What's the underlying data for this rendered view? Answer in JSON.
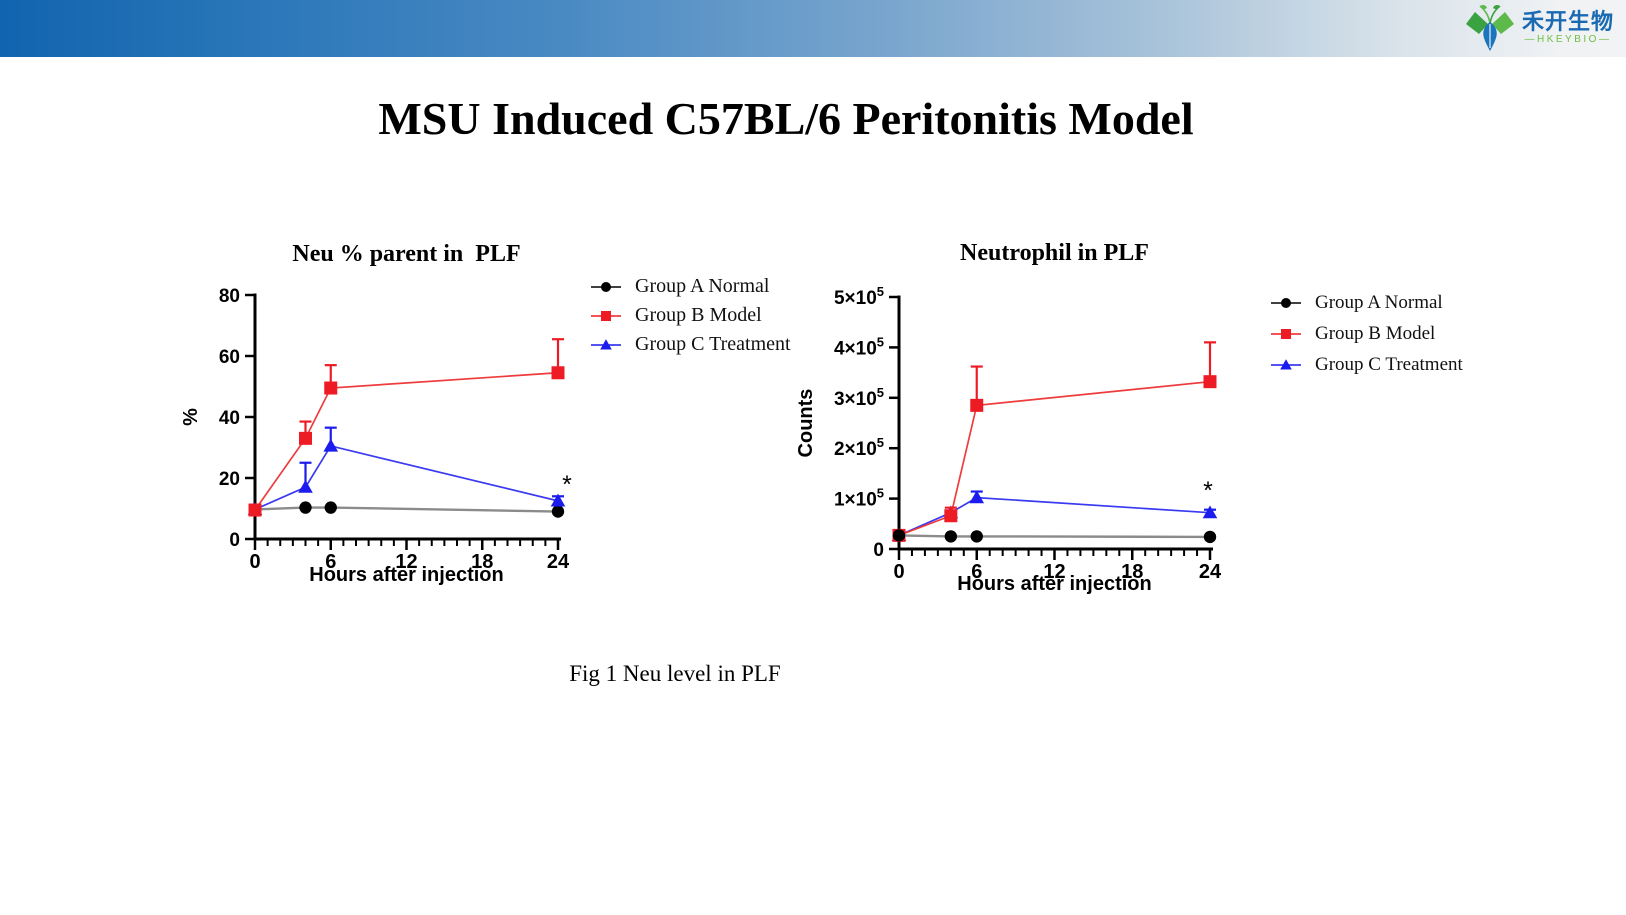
{
  "header": {
    "logo_text_cn": "禾开生物",
    "logo_text_en": "—HKEYBIO—",
    "gradient_left": "#1164af",
    "gradient_right": "#f2f3f4",
    "logo_blue": "#1a6ab3",
    "logo_green_dark": "#3aa241",
    "logo_green_light": "#5cb94a",
    "logo_drop_blue": "#1c75bc"
  },
  "title": "MSU Induced C57BL/6 Peritonitis Model",
  "caption": "Fig 1 Neu level in PLF",
  "chart_data": [
    {
      "type": "line",
      "title": "Neu % parent in  PLF",
      "xlabel": "Hours after injection",
      "ylabel": "%",
      "x": [
        0,
        4,
        6,
        24
      ],
      "xlim": [
        0,
        24
      ],
      "x_major_ticks": [
        0,
        6,
        12,
        18,
        24
      ],
      "x_minor_step": 1,
      "ylim": [
        0,
        80
      ],
      "y_ticks": [
        {
          "v": 0,
          "main": "0"
        },
        {
          "v": 20,
          "main": "20"
        },
        {
          "v": 40,
          "main": "40"
        },
        {
          "v": 60,
          "main": "60"
        },
        {
          "v": 80,
          "main": "80"
        }
      ],
      "grid": false,
      "legend_position": "right",
      "series": [
        {
          "name": "Group A Normal",
          "marker": "circle",
          "color": "#000000",
          "line_color": "#8b8b8b",
          "legend_line": "#000000",
          "line_width": 2.4,
          "values": [
            9.7,
            10.3,
            10.3,
            9.0
          ],
          "err_up": [
            0,
            0,
            0,
            0
          ]
        },
        {
          "name": "Group B Model",
          "marker": "square",
          "color": "#ed1c24",
          "line_color": "#ee3b3b",
          "legend_line": "#ed1c24",
          "line_width": 1.7,
          "values": [
            9.5,
            33,
            49.5,
            54.5
          ],
          "err_up": [
            0,
            5.5,
            7.5,
            11
          ]
        },
        {
          "name": "Group C Treatment",
          "marker": "triangle",
          "color": "#1c1cee",
          "line_color": "#3a3af0",
          "legend_line": "#1c1cee",
          "line_width": 1.7,
          "values": [
            9.7,
            17,
            30.5,
            12.5
          ],
          "err_up": [
            0,
            8,
            6,
            1.5
          ]
        }
      ],
      "draw_order": [
        0,
        2,
        1
      ],
      "annotation": {
        "text": "*",
        "x": 24,
        "y": 19.3,
        "dx": 9
      }
    },
    {
      "type": "line",
      "title": "Neutrophil in PLF",
      "xlabel": "Hours after injection",
      "ylabel": "Counts",
      "x": [
        0,
        4,
        6,
        24
      ],
      "xlim": [
        0,
        24
      ],
      "x_major_ticks": [
        0,
        6,
        12,
        18,
        24
      ],
      "x_minor_step": 1,
      "ylim": [
        0,
        500000
      ],
      "y_ticks": [
        {
          "v": 0,
          "main": "0"
        },
        {
          "v": 100000,
          "main": "1×10",
          "sup": "5"
        },
        {
          "v": 200000,
          "main": "2×10",
          "sup": "5"
        },
        {
          "v": 300000,
          "main": "3×10",
          "sup": "5"
        },
        {
          "v": 400000,
          "main": "4×10",
          "sup": "5"
        },
        {
          "v": 500000,
          "main": "5×10",
          "sup": "5"
        }
      ],
      "grid": false,
      "legend_position": "right",
      "series": [
        {
          "name": "Group A Normal",
          "marker": "circle",
          "color": "#000000",
          "line_color": "#8b8b8b",
          "legend_line": "#000000",
          "line_width": 2.4,
          "values": [
            27000,
            25000,
            25000,
            24000
          ],
          "err_up": [
            0,
            0,
            0,
            0
          ]
        },
        {
          "name": "Group B Model",
          "marker": "square",
          "color": "#ed1c24",
          "line_color": "#ee3b3b",
          "legend_line": "#ed1c24",
          "line_width": 1.7,
          "values": [
            27000,
            66000,
            285000,
            332000
          ],
          "err_up": [
            0,
            16000,
            77000,
            78000
          ]
        },
        {
          "name": "Group C Treatment",
          "marker": "triangle",
          "color": "#1c1cee",
          "line_color": "#3a3af0",
          "legend_line": "#1c1cee",
          "line_width": 1.7,
          "values": [
            27000,
            72000,
            102000,
            72000
          ],
          "err_up": [
            0,
            0,
            12000,
            6000
          ]
        }
      ],
      "draw_order": [
        2,
        1,
        0
      ],
      "annotation": {
        "text": "*",
        "x": 24,
        "y": 125000,
        "dx": -2
      }
    }
  ]
}
